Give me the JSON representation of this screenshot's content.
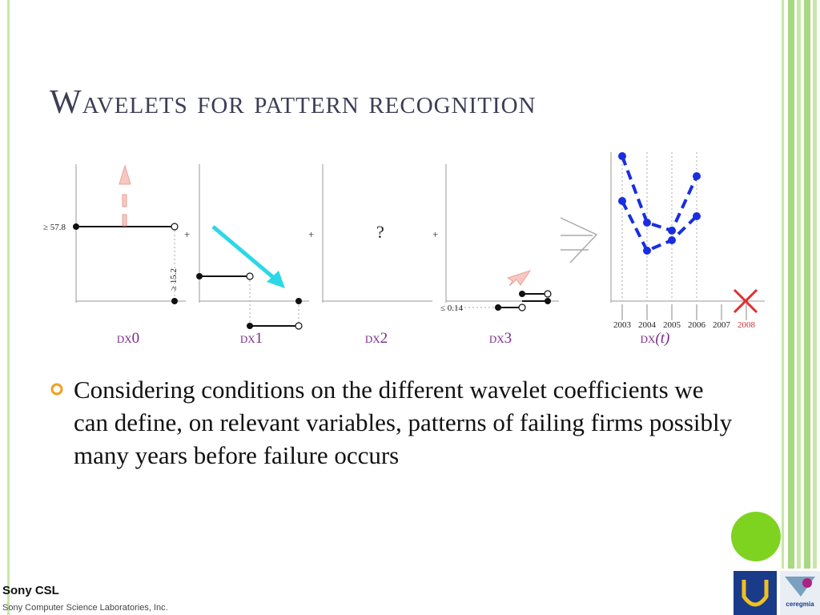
{
  "title": "Wavelets for pattern recognition",
  "figure": {
    "thresholds": [
      "≥ 57.8",
      "≥ 15.2",
      "≤ 0.14"
    ],
    "signs": [
      "+",
      "+",
      "+"
    ],
    "question": "?",
    "panel_labels": [
      "dx0",
      "dx1",
      "dx2",
      "dx3"
    ],
    "time_label": {
      "name": "dx",
      "arg": "(t)"
    },
    "years": [
      "2003",
      "2004",
      "2005",
      "2006",
      "2007",
      "2008"
    ]
  },
  "bullets": [
    "Considering conditions on the different wavelet coefficients we can define, on relevant variables, patterns of failing firms possibly many years before failure occurs"
  ],
  "footer": {
    "org": "Sony CSL",
    "org_full": "Sony Computer Science Laboratories, Inc.",
    "logo": "ceregmia"
  }
}
